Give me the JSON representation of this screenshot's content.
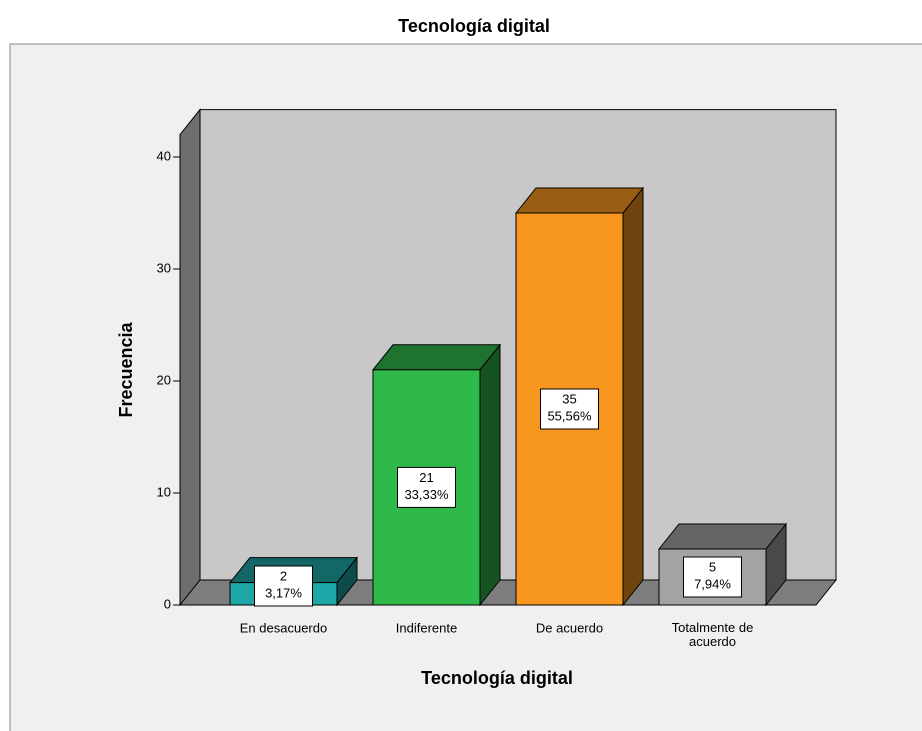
{
  "chart_data": {
    "type": "bar3d",
    "title": "Tecnología digital",
    "xlabel": "Tecnología digital",
    "ylabel": "Frecuencia",
    "categories": [
      "En desacuerdo",
      "Indiferente",
      "De acuerdo",
      "Totalmente de acuerdo"
    ],
    "values": [
      2,
      21,
      35,
      5
    ],
    "percent_labels": [
      "3,17%",
      "33,33%",
      "55,56%",
      "7,94%"
    ],
    "colors": [
      "#1fa6a6",
      "#30b94b",
      "#f7971e",
      "#a3a3a3"
    ],
    "ylim": [
      0,
      42
    ],
    "yticks": [
      0,
      10,
      20,
      30,
      40
    ]
  }
}
